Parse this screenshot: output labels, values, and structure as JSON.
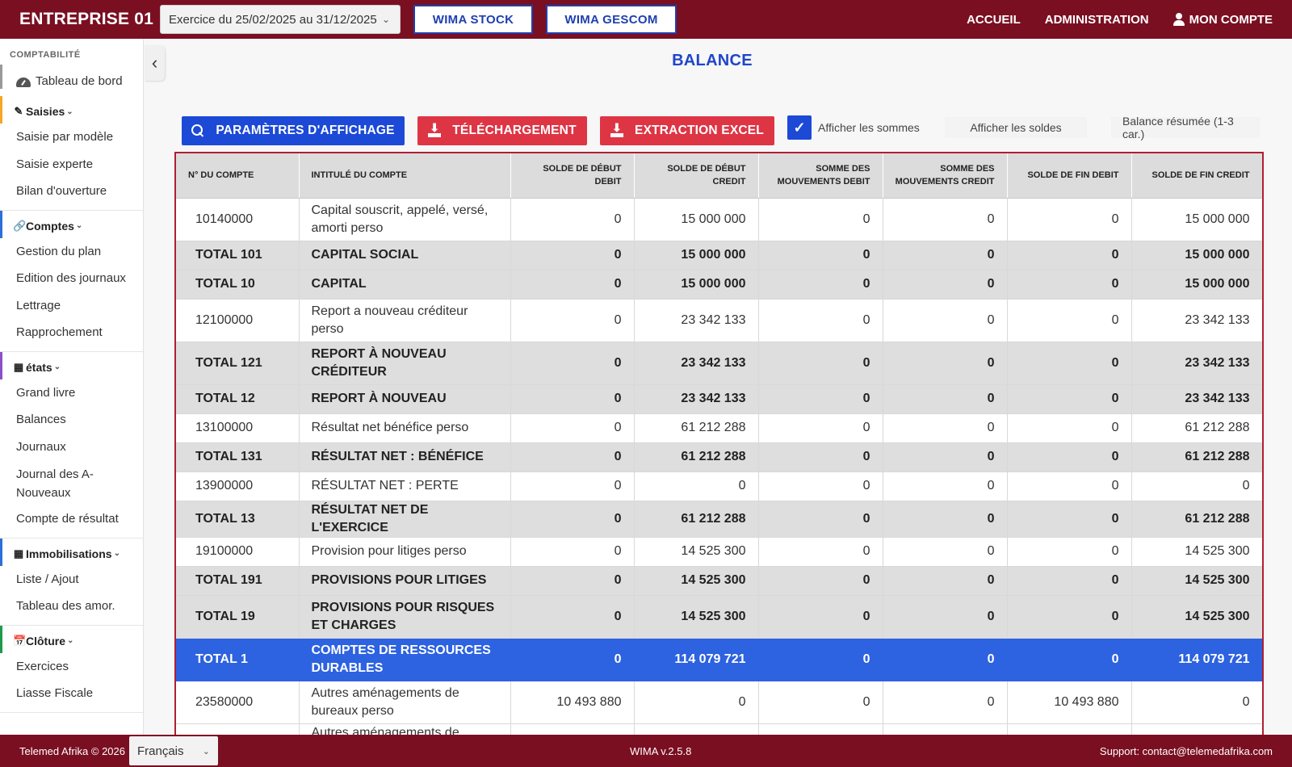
{
  "header": {
    "company": "ENTREPRISE 01",
    "exercise_select": "Exercice du 25/02/2025 au 31/12/2025",
    "app_buttons": [
      "WIMA STOCK",
      "WIMA GESCOM"
    ],
    "nav": [
      "ACCUEIL",
      "ADMINISTRATION",
      "MON COMPTE"
    ]
  },
  "sidebar": {
    "heading": "COMPTABILITÉ",
    "dashboard": "Tableau de bord",
    "sections": [
      {
        "title": "Saisies",
        "color": "#f5a623",
        "items": [
          "Saisie par modèle",
          "Saisie experte",
          "Bilan d'ouverture"
        ]
      },
      {
        "title": "Comptes",
        "color": "#2c6fd6",
        "items": [
          "Gestion du plan",
          "Edition des journaux",
          "Lettrage",
          "Rapprochement"
        ]
      },
      {
        "title": "états",
        "color": "#8a4fc9",
        "items": [
          "Grand livre",
          "Balances",
          "Journaux",
          "Journal des A-Nouveaux",
          "Compte de résultat"
        ]
      },
      {
        "title": "Immobilisations",
        "color": "#2c6fd6",
        "items": [
          "Liste / Ajout",
          "Tableau des amor."
        ]
      },
      {
        "title": "Clôture",
        "color": "#1f9a4a",
        "items": [
          "Exercices",
          "Liasse Fiscale"
        ]
      }
    ]
  },
  "main": {
    "title": "BALANCE",
    "buttons": {
      "params": "PARAMÈTRES D'AFFICHAGE",
      "download": "TÉLÉCHARGEMENT",
      "excel": "EXTRACTION EXCEL"
    },
    "options": {
      "sommes": "Afficher les sommes",
      "sommes_checked": true,
      "soldes": "Afficher les soldes",
      "resume": "Balance résumée (1-3 car.)"
    }
  },
  "table": {
    "headers": [
      "N° DU COMPTE",
      "INTITULÉ DU COMPTE",
      "SOLDE DE DÉBUT DEBIT",
      "SOLDE DE DÉBUT CREDIT",
      "SOMME DES MOUVEMENTS DEBIT",
      "SOMME DES MOUVEMENTS CREDIT",
      "SOLDE DE FIN DEBIT",
      "SOLDE DE FIN CREDIT"
    ],
    "rows": [
      {
        "type": "norm",
        "cells": [
          "10140000",
          "Capital souscrit, appelé, versé, amorti perso",
          "0",
          "15 000 000",
          "0",
          "0",
          "0",
          "15 000 000"
        ]
      },
      {
        "type": "total",
        "cells": [
          "TOTAL 101",
          "CAPITAL SOCIAL",
          "0",
          "15 000 000",
          "0",
          "0",
          "0",
          "15 000 000"
        ]
      },
      {
        "type": "total",
        "cells": [
          "TOTAL 10",
          "CAPITAL",
          "0",
          "15 000 000",
          "0",
          "0",
          "0",
          "15 000 000"
        ]
      },
      {
        "type": "norm",
        "cells": [
          "12100000",
          "Report a nouveau créditeur perso",
          "0",
          "23 342 133",
          "0",
          "0",
          "0",
          "23 342 133"
        ]
      },
      {
        "type": "total",
        "cells": [
          "TOTAL 121",
          "REPORT À NOUVEAU CRÉDITEUR",
          "0",
          "23 342 133",
          "0",
          "0",
          "0",
          "23 342 133"
        ]
      },
      {
        "type": "total",
        "cells": [
          "TOTAL 12",
          "REPORT À NOUVEAU",
          "0",
          "23 342 133",
          "0",
          "0",
          "0",
          "23 342 133"
        ]
      },
      {
        "type": "norm",
        "cells": [
          "13100000",
          "Résultat net bénéfice perso",
          "0",
          "61 212 288",
          "0",
          "0",
          "0",
          "61 212 288"
        ]
      },
      {
        "type": "total",
        "cells": [
          "TOTAL 131",
          "RÉSULTAT NET : BÉNÉFICE",
          "0",
          "61 212 288",
          "0",
          "0",
          "0",
          "61 212 288"
        ]
      },
      {
        "type": "norm",
        "cells": [
          "13900000",
          "RÉSULTAT NET : PERTE",
          "0",
          "0",
          "0",
          "0",
          "0",
          "0"
        ]
      },
      {
        "type": "total",
        "cells": [
          "TOTAL 13",
          "RÉSULTAT NET DE L'EXERCICE",
          "0",
          "61 212 288",
          "0",
          "0",
          "0",
          "61 212 288"
        ]
      },
      {
        "type": "norm",
        "cells": [
          "19100000",
          "Provision pour litiges perso",
          "0",
          "14 525 300",
          "0",
          "0",
          "0",
          "14 525 300"
        ]
      },
      {
        "type": "total",
        "cells": [
          "TOTAL 191",
          "PROVISIONS POUR LITIGES",
          "0",
          "14 525 300",
          "0",
          "0",
          "0",
          "14 525 300"
        ]
      },
      {
        "type": "total",
        "cells": [
          "TOTAL 19",
          "PROVISIONS POUR RISQUES ET CHARGES",
          "0",
          "14 525 300",
          "0",
          "0",
          "0",
          "14 525 300"
        ]
      },
      {
        "type": "grand",
        "cells": [
          "TOTAL 1",
          "COMPTES DE RESSOURCES DURABLES",
          "0",
          "114 079 721",
          "0",
          "0",
          "0",
          "114 079 721"
        ]
      },
      {
        "type": "norm",
        "cells": [
          "23580000",
          "Autres aménagements de bureaux perso",
          "10 493 880",
          "0",
          "0",
          "0",
          "10 493 880",
          "0"
        ]
      },
      {
        "type": "norm",
        "cells": [
          "",
          "Autres aménagements de",
          "",
          "",
          "",
          "",
          "",
          ""
        ]
      }
    ]
  },
  "footer": {
    "copyright": "Telemed Afrika © 2026",
    "language": "Français",
    "version": "WIMA v.2.5.8",
    "support": "Support: contact@telemedafrika.com"
  }
}
